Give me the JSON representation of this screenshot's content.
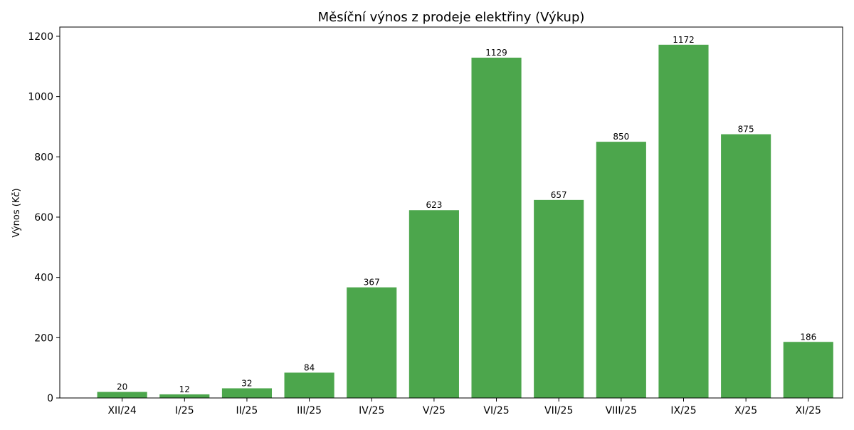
{
  "chart_data": {
    "type": "bar",
    "title": "Měsíční výnos z prodeje elektřiny (Výkup)",
    "xlabel": "",
    "ylabel": "Výnos (Kč)",
    "categories": [
      "XII/24",
      "I/25",
      "II/25",
      "III/25",
      "IV/25",
      "V/25",
      "VI/25",
      "VII/25",
      "VIII/25",
      "IX/25",
      "X/25",
      "XI/25"
    ],
    "values": [
      20,
      12,
      32,
      84,
      367,
      623,
      1129,
      657,
      850,
      1172,
      875,
      186
    ],
    "value_labels": [
      "20",
      "12",
      "32",
      "84",
      "367",
      "623",
      "1129",
      "657",
      "850",
      "1172",
      "875",
      "186"
    ],
    "yticks": [
      0,
      200,
      400,
      600,
      800,
      1000,
      1200
    ],
    "ytick_labels": [
      "0",
      "200",
      "400",
      "600",
      "800",
      "1000",
      "1200"
    ],
    "ylim": [
      0,
      1230.6
    ],
    "grid": false,
    "legend": "none",
    "bar_color": "#4ca64c"
  }
}
